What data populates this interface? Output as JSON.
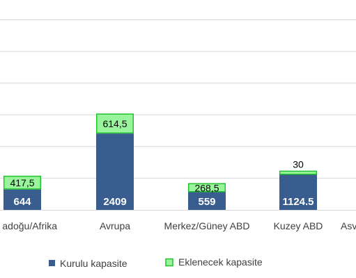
{
  "chart_data": {
    "type": "bar",
    "stacked": true,
    "categories": [
      "Ortadoğu/Afrika",
      "Avrupa",
      "Merkez/Güney ABD",
      "Kuzey ABD",
      "Asya"
    ],
    "displayed_category_labels": [
      "adoğu/Afrika",
      "Avrupa",
      "Merkez/Güney ABD",
      "Kuzey ABD",
      "Asv"
    ],
    "series": [
      {
        "name": "Kurulu kapasite",
        "values": [
          644,
          2409,
          559,
          1124.5,
          null
        ],
        "labels": [
          "644",
          "2409",
          "559",
          "1124.5",
          ""
        ],
        "color": "#3a5d8f"
      },
      {
        "name": "Eklenecek kapasite",
        "values": [
          417.5,
          614.5,
          268.5,
          30,
          null
        ],
        "labels": [
          "417,5",
          "614,5",
          "268,5",
          "30",
          ""
        ],
        "color": "#99f59c",
        "border_color": "#22c22d"
      }
    ],
    "ylim": [
      0,
      6500
    ],
    "grid": true,
    "legend_position": "bottom",
    "grid_color": "#d9d9d9"
  }
}
